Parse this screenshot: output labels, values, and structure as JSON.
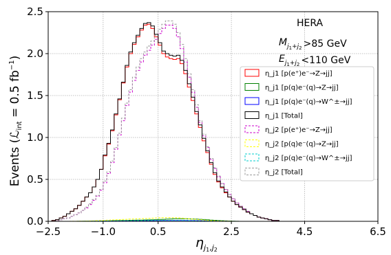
{
  "chart_data": {
    "type": "line",
    "style": "step-histogram",
    "xlabel": "η_{j1,j2}",
    "ylabel": "Events (L_int = 0.5 fb⁻¹)",
    "xlim": [
      -2.5,
      6.5
    ],
    "ylim": [
      0,
      2.5
    ],
    "grid": true,
    "x_ticks": [
      -2.5,
      -1.0,
      0.5,
      2.5,
      4.5,
      6.5
    ],
    "x_tick_labels": [
      "−2.5",
      "−1.0",
      "0.5",
      "2.5",
      "4.5",
      "6.5"
    ],
    "y_ticks": [
      0,
      0.5,
      1.0,
      1.5,
      2.0,
      2.5
    ],
    "y_tick_labels": [
      "0.0",
      "0.5",
      "1.0",
      "1.5",
      "2.0",
      "2.5"
    ],
    "annotations": {
      "experiment": "HERA",
      "cut_mass": ">85 GeV",
      "cut_energy": "<110 GeV"
    },
    "legend_position": "center-right",
    "bin_edges": [
      -2.5,
      -2.4,
      -2.3,
      -2.2,
      -2.1,
      -2.0,
      -1.9,
      -1.8,
      -1.7,
      -1.6,
      -1.5,
      -1.4,
      -1.3,
      -1.2,
      -1.1,
      -1.0,
      -0.9,
      -0.8,
      -0.7,
      -0.6,
      -0.5,
      -0.4,
      -0.3,
      -0.2,
      -0.1,
      0.0,
      0.1,
      0.2,
      0.3,
      0.4,
      0.5,
      0.6,
      0.7,
      0.8,
      0.9,
      1.0,
      1.1,
      1.2,
      1.3,
      1.4,
      1.5,
      1.6,
      1.7,
      1.8,
      1.9,
      2.0,
      2.1,
      2.2,
      2.3,
      2.4,
      2.5,
      2.6,
      2.7,
      2.8,
      2.9,
      3.0,
      3.1,
      3.2,
      3.3,
      3.4,
      3.5,
      3.6,
      3.7,
      3.8,
      3.9,
      4.0
    ],
    "series": [
      {
        "name": "η_j1 [p(e⁺)e⁻→Z→jj]",
        "color": "#ff0000",
        "dash": "solid",
        "values": [
          0.0,
          0.01,
          0.02,
          0.04,
          0.06,
          0.09,
          0.12,
          0.15,
          0.19,
          0.24,
          0.29,
          0.34,
          0.41,
          0.5,
          0.62,
          0.78,
          0.92,
          1.08,
          1.27,
          1.45,
          1.65,
          1.84,
          2.0,
          2.11,
          2.2,
          2.28,
          2.34,
          2.35,
          2.3,
          2.2,
          2.1,
          2.0,
          1.96,
          1.94,
          1.93,
          1.94,
          1.88,
          1.76,
          1.6,
          1.44,
          1.28,
          1.12,
          0.96,
          0.82,
          0.68,
          0.56,
          0.47,
          0.4,
          0.34,
          0.29,
          0.24,
          0.2,
          0.17,
          0.14,
          0.11,
          0.09,
          0.07,
          0.05,
          0.04,
          0.03,
          0.02,
          0.01,
          0.01,
          0.0,
          0.0
        ]
      },
      {
        "name": "η_j1 [p(q)e⁻(q)→Z→jj]",
        "color": "#008000",
        "dash": "solid",
        "values": [
          0.0,
          0.0,
          0.0,
          0.0,
          0.0,
          0.0,
          0.0,
          0.0,
          0.001,
          0.001,
          0.002,
          0.002,
          0.003,
          0.003,
          0.004,
          0.005,
          0.006,
          0.007,
          0.008,
          0.009,
          0.01,
          0.011,
          0.012,
          0.013,
          0.014,
          0.015,
          0.016,
          0.017,
          0.018,
          0.02,
          0.022,
          0.024,
          0.026,
          0.028,
          0.03,
          0.03,
          0.03,
          0.03,
          0.029,
          0.028,
          0.026,
          0.024,
          0.021,
          0.018,
          0.015,
          0.012,
          0.009,
          0.007,
          0.005,
          0.003,
          0.002,
          0.001,
          0.0,
          0.0,
          0.0,
          0.0,
          0.0,
          0.0,
          0.0,
          0.0,
          0.0,
          0.0,
          0.0,
          0.0,
          0.0
        ]
      },
      {
        "name": "η_j1 [p(q)e⁻(q)→W^±→jj]",
        "color": "#0000ff",
        "dash": "solid",
        "values": [
          0.0,
          0.0,
          0.0,
          0.0,
          0.0,
          0.0,
          0.0,
          0.0,
          0.0,
          0.0,
          0.0,
          0.0,
          0.001,
          0.001,
          0.001,
          0.002,
          0.002,
          0.003,
          0.003,
          0.004,
          0.004,
          0.005,
          0.005,
          0.006,
          0.006,
          0.007,
          0.007,
          0.008,
          0.008,
          0.009,
          0.009,
          0.01,
          0.01,
          0.01,
          0.01,
          0.01,
          0.01,
          0.01,
          0.009,
          0.009,
          0.008,
          0.007,
          0.006,
          0.005,
          0.004,
          0.003,
          0.002,
          0.001,
          0.001,
          0.0,
          0.0,
          0.0,
          0.0,
          0.0,
          0.0,
          0.0,
          0.0,
          0.0,
          0.0,
          0.0,
          0.0,
          0.0,
          0.0,
          0.0,
          0.0
        ]
      },
      {
        "name": "η_j1 [Total]",
        "color": "#000000",
        "dash": "solid",
        "values": [
          0.0,
          0.01,
          0.02,
          0.04,
          0.06,
          0.09,
          0.12,
          0.15,
          0.19,
          0.24,
          0.29,
          0.34,
          0.41,
          0.5,
          0.62,
          0.79,
          0.93,
          1.09,
          1.28,
          1.46,
          1.66,
          1.86,
          2.02,
          2.13,
          2.22,
          2.3,
          2.36,
          2.37,
          2.33,
          2.23,
          2.13,
          2.03,
          2.0,
          1.98,
          1.97,
          1.98,
          1.92,
          1.8,
          1.64,
          1.48,
          1.31,
          1.15,
          0.99,
          0.84,
          0.7,
          0.58,
          0.48,
          0.41,
          0.35,
          0.29,
          0.24,
          0.2,
          0.17,
          0.14,
          0.11,
          0.09,
          0.07,
          0.05,
          0.04,
          0.03,
          0.02,
          0.01,
          0.01,
          0.0,
          0.0
        ]
      },
      {
        "name": "η_j2 [p(e⁺)e⁻→Z→jj]",
        "color": "#cc00cc",
        "dash": "dashed",
        "values": [
          0.0,
          0.0,
          0.01,
          0.02,
          0.03,
          0.04,
          0.06,
          0.08,
          0.1,
          0.13,
          0.16,
          0.2,
          0.25,
          0.3,
          0.37,
          0.46,
          0.57,
          0.7,
          0.86,
          1.03,
          1.2,
          1.38,
          1.54,
          1.68,
          1.8,
          1.9,
          1.98,
          2.04,
          2.1,
          2.17,
          2.24,
          2.3,
          2.34,
          2.34,
          2.3,
          2.2,
          2.06,
          1.9,
          1.72,
          1.54,
          1.36,
          1.18,
          1.02,
          0.88,
          0.74,
          0.63,
          0.53,
          0.45,
          0.38,
          0.32,
          0.27,
          0.22,
          0.18,
          0.15,
          0.12,
          0.09,
          0.07,
          0.05,
          0.04,
          0.03,
          0.02,
          0.01,
          0.01,
          0.0,
          0.0
        ]
      },
      {
        "name": "η_j2 [p(q)e⁻(q)→Z→jj]",
        "color": "#ffff00",
        "dash": "dashed",
        "values": [
          0.0,
          0.0,
          0.0,
          0.0,
          0.0,
          0.0,
          0.001,
          0.001,
          0.002,
          0.003,
          0.004,
          0.005,
          0.006,
          0.008,
          0.01,
          0.012,
          0.014,
          0.016,
          0.018,
          0.02,
          0.022,
          0.024,
          0.026,
          0.028,
          0.03,
          0.032,
          0.034,
          0.036,
          0.038,
          0.04,
          0.042,
          0.043,
          0.044,
          0.044,
          0.043,
          0.041,
          0.038,
          0.034,
          0.03,
          0.026,
          0.022,
          0.018,
          0.014,
          0.011,
          0.008,
          0.006,
          0.004,
          0.003,
          0.002,
          0.001,
          0.0,
          0.0,
          0.0,
          0.0,
          0.0,
          0.0,
          0.0,
          0.0,
          0.0,
          0.0,
          0.0,
          0.0,
          0.0,
          0.0,
          0.0
        ]
      },
      {
        "name": "η_j2 [p(q)e⁻(q)→W^±→jj]",
        "color": "#00cccc",
        "dash": "dashed",
        "values": [
          0.0,
          0.0,
          0.0,
          0.0,
          0.0,
          0.0,
          0.0,
          0.0,
          0.0,
          0.001,
          0.001,
          0.001,
          0.002,
          0.002,
          0.003,
          0.003,
          0.004,
          0.004,
          0.005,
          0.005,
          0.006,
          0.006,
          0.007,
          0.007,
          0.008,
          0.008,
          0.009,
          0.009,
          0.01,
          0.01,
          0.011,
          0.011,
          0.011,
          0.011,
          0.011,
          0.01,
          0.01,
          0.009,
          0.008,
          0.007,
          0.006,
          0.005,
          0.004,
          0.003,
          0.002,
          0.001,
          0.001,
          0.0,
          0.0,
          0.0,
          0.0,
          0.0,
          0.0,
          0.0,
          0.0,
          0.0,
          0.0,
          0.0,
          0.0,
          0.0,
          0.0,
          0.0,
          0.0,
          0.0,
          0.0
        ]
      },
      {
        "name": "η_j2 [Total]",
        "color": "#999999",
        "dash": "dashed",
        "values": [
          0.0,
          0.0,
          0.01,
          0.02,
          0.03,
          0.04,
          0.06,
          0.08,
          0.1,
          0.13,
          0.17,
          0.21,
          0.26,
          0.31,
          0.38,
          0.48,
          0.59,
          0.72,
          0.88,
          1.05,
          1.23,
          1.41,
          1.57,
          1.72,
          1.84,
          1.94,
          2.02,
          2.09,
          2.15,
          2.22,
          2.29,
          2.35,
          2.39,
          2.39,
          2.35,
          2.25,
          2.11,
          1.94,
          1.76,
          1.57,
          1.39,
          1.2,
          1.04,
          0.89,
          0.75,
          0.64,
          0.54,
          0.45,
          0.38,
          0.32,
          0.27,
          0.22,
          0.18,
          0.15,
          0.12,
          0.09,
          0.07,
          0.05,
          0.04,
          0.03,
          0.02,
          0.01,
          0.01,
          0.0,
          0.0
        ]
      }
    ]
  }
}
